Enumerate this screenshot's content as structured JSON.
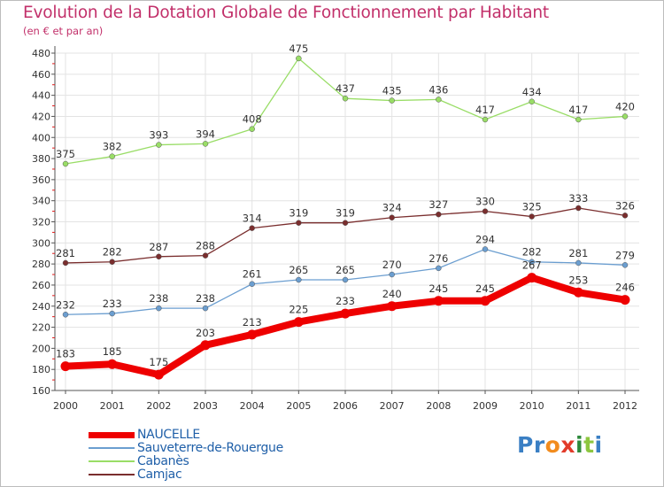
{
  "title": "Evolution de la Dotation Globale de Fonctionnement par Habitant",
  "subtitle": "(en € et par an)",
  "colors": {
    "title": "#c2306a",
    "legend_text": "#1f5fa8",
    "axis": "#555555",
    "grid": "#e3e3e3",
    "tick_accent": "#e21b1b"
  },
  "chart_data": {
    "type": "line",
    "title": "Evolution de la Dotation Globale de Fonctionnement par Habitant",
    "subtitle": "(en € et par an)",
    "xlabel": "",
    "ylabel": "",
    "x": [
      "2000",
      "2001",
      "2002",
      "2003",
      "2004",
      "2005",
      "2006",
      "2007",
      "2008",
      "2009",
      "2010",
      "2011",
      "2012"
    ],
    "ylim": [
      160,
      480
    ],
    "yticks": [
      160,
      180,
      200,
      220,
      240,
      260,
      280,
      300,
      320,
      340,
      360,
      380,
      400,
      420,
      440,
      460,
      480
    ],
    "grid": true,
    "legend_position": "bottom-left",
    "series": [
      {
        "name": "NAUCELLE",
        "color": "#ee0000",
        "emphasis": true,
        "values": [
          183,
          185,
          175,
          203,
          213,
          225,
          233,
          240,
          245,
          245,
          267,
          253,
          246
        ]
      },
      {
        "name": "Sauveterre-de-Rouergue",
        "color": "#6b9ed0",
        "emphasis": false,
        "values": [
          232,
          233,
          238,
          238,
          261,
          265,
          265,
          270,
          276,
          294,
          282,
          281,
          279
        ]
      },
      {
        "name": "Cabanès",
        "color": "#99dd66",
        "emphasis": false,
        "values": [
          375,
          382,
          393,
          394,
          408,
          475,
          437,
          435,
          436,
          417,
          434,
          417,
          420
        ]
      },
      {
        "name": "Camjac",
        "color": "#7a2e2e",
        "emphasis": false,
        "values": [
          281,
          282,
          287,
          288,
          314,
          319,
          319,
          324,
          327,
          330,
          325,
          333,
          326
        ]
      }
    ]
  },
  "logo": {
    "text": "Proxiti",
    "letter_colors": [
      "#3a7fc4",
      "#3a7fc4",
      "#f28c1e",
      "#e23b2a",
      "#2e8a3c",
      "#8dc63f",
      "#3a7fc4"
    ]
  }
}
